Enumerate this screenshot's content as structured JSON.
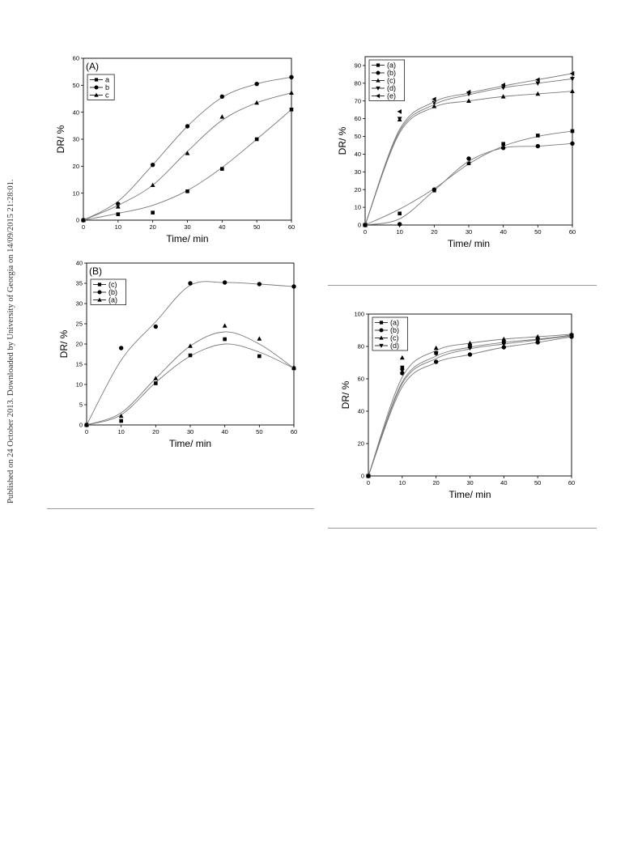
{
  "side_note": "Published on 24 October 2013. Downloaded by University of Georgia on 14/09/2015 21:28:01.",
  "chart_data": [
    {
      "id": "chart-a",
      "type": "scatter",
      "panel_label": "(A)",
      "xlabel": "Time/ min",
      "ylabel": "DR/ %",
      "xlim": [
        0,
        60
      ],
      "ylim": [
        0,
        60
      ],
      "xticks": [
        0,
        10,
        20,
        30,
        40,
        50,
        60
      ],
      "yticks": [
        0,
        10,
        20,
        30,
        40,
        50,
        60
      ],
      "legend_position": "top-left",
      "series": [
        {
          "name": "a",
          "marker": "square",
          "x": [
            0,
            10,
            20,
            30,
            40,
            50,
            60
          ],
          "y": [
            0,
            2.2,
            2.8,
            10.7,
            19,
            30,
            41
          ],
          "fit_x": [
            0,
            10,
            20,
            30,
            40,
            50,
            60
          ],
          "fit_y": [
            0,
            2.5,
            5.5,
            11,
            19.5,
            30,
            41
          ]
        },
        {
          "name": "b",
          "marker": "circle",
          "x": [
            0,
            10,
            20,
            30,
            40,
            50,
            60
          ],
          "y": [
            0,
            6,
            20.5,
            34.8,
            45.8,
            50.5,
            53
          ],
          "fit_x": [
            0,
            10,
            20,
            30,
            40,
            50,
            60
          ],
          "fit_y": [
            0,
            7,
            20.5,
            34.8,
            45.5,
            50.5,
            53
          ]
        },
        {
          "name": "c",
          "marker": "triangle-up",
          "x": [
            0,
            10,
            20,
            30,
            40,
            50,
            60
          ],
          "y": [
            0,
            5,
            13,
            24.8,
            38.3,
            43.5,
            47.2
          ],
          "fit_x": [
            0,
            10,
            20,
            30,
            40,
            50,
            60
          ],
          "fit_y": [
            0,
            5.5,
            13,
            25.5,
            37,
            43.5,
            47.2
          ]
        }
      ]
    },
    {
      "id": "chart-b",
      "type": "scatter",
      "panel_label": "(B)",
      "xlabel": "Time/ min",
      "ylabel": "DR/ %",
      "xlim": [
        0,
        60
      ],
      "ylim": [
        0,
        40
      ],
      "xticks": [
        0,
        10,
        20,
        30,
        40,
        50,
        60
      ],
      "yticks": [
        0,
        5,
        10,
        15,
        20,
        25,
        30,
        35,
        40
      ],
      "legend_position": "top-left",
      "series": [
        {
          "name": "(c)",
          "marker": "square",
          "x": [
            0,
            10,
            20,
            30,
            40,
            50,
            60
          ],
          "y": [
            0,
            1,
            10.3,
            17.2,
            21.2,
            17,
            14
          ],
          "fit_x": [
            0,
            10,
            20,
            30,
            40,
            50,
            60
          ],
          "fit_y": [
            0,
            2.5,
            10.5,
            17,
            20,
            18,
            14
          ]
        },
        {
          "name": "(b)",
          "marker": "circle",
          "x": [
            0,
            10,
            20,
            30,
            40,
            50,
            60
          ],
          "y": [
            0,
            19,
            24.3,
            35,
            35.2,
            34.8,
            34.2
          ],
          "fit_x": [
            0,
            10,
            20,
            30,
            40,
            50,
            60
          ],
          "fit_y": [
            0,
            16,
            25.5,
            34.5,
            35.2,
            34.8,
            34.2
          ]
        },
        {
          "name": "(a)",
          "marker": "triangle-up",
          "x": [
            0,
            10,
            20,
            30,
            40,
            50,
            60
          ],
          "y": [
            0,
            2.2,
            11.5,
            19.5,
            24.5,
            21.3,
            14.2
          ],
          "fit_x": [
            0,
            10,
            20,
            30,
            40,
            50,
            60
          ],
          "fit_y": [
            0,
            3,
            11.5,
            19.5,
            23,
            20,
            14
          ]
        }
      ]
    },
    {
      "id": "chart-c",
      "type": "scatter",
      "panel_label": "",
      "xlabel": "Time/ min",
      "ylabel": "DR/ %",
      "xlim": [
        0,
        60
      ],
      "ylim": [
        0,
        95
      ],
      "xticks": [
        0,
        10,
        20,
        30,
        40,
        50,
        60
      ],
      "yticks": [
        0,
        10,
        20,
        30,
        40,
        50,
        60,
        70,
        80,
        90
      ],
      "legend_position": "top-left",
      "series": [
        {
          "name": "(a)",
          "marker": "square",
          "x": [
            0,
            10,
            20,
            30,
            40,
            50,
            60
          ],
          "y": [
            0,
            6.5,
            19.5,
            34.8,
            45.8,
            50.5,
            53
          ],
          "fit_x": [
            0,
            10,
            20,
            30,
            40,
            50,
            60
          ],
          "fit_y": [
            0,
            9,
            20.5,
            34.5,
            44.5,
            50,
            53
          ]
        },
        {
          "name": "(b)",
          "marker": "circle",
          "x": [
            0,
            10,
            20,
            30,
            40,
            50,
            60
          ],
          "y": [
            0,
            0.5,
            20,
            37.5,
            43.5,
            44.5,
            46
          ],
          "fit_x": [
            0,
            10,
            20,
            30,
            40,
            50,
            60
          ],
          "fit_y": [
            0,
            3.5,
            19.5,
            36,
            43.5,
            44.5,
            46
          ]
        },
        {
          "name": "(c)",
          "marker": "triangle-up",
          "x": [
            0,
            10,
            20,
            30,
            40,
            50,
            60
          ],
          "y": [
            0,
            59.5,
            67,
            70,
            72.5,
            74,
            75.5
          ],
          "fit_x": [
            0,
            10,
            20,
            30,
            40,
            50,
            60
          ],
          "fit_y": [
            0,
            52,
            66.5,
            70,
            72.5,
            74,
            75.5
          ]
        },
        {
          "name": "(d)",
          "marker": "triangle-down",
          "x": [
            0,
            10,
            20,
            30,
            40,
            50,
            60
          ],
          "y": [
            0,
            60,
            69,
            74,
            77.5,
            80,
            82.5
          ],
          "fit_x": [
            0,
            10,
            20,
            30,
            40,
            50,
            60
          ],
          "fit_y": [
            0,
            53,
            68,
            73.5,
            77.5,
            80,
            82.5
          ]
        },
        {
          "name": "(e)",
          "marker": "triangle-left",
          "x": [
            0,
            10,
            20,
            30,
            40,
            50,
            60
          ],
          "y": [
            0,
            64,
            71,
            75,
            79,
            82,
            85.5
          ],
          "fit_x": [
            0,
            10,
            20,
            30,
            40,
            50,
            60
          ],
          "fit_y": [
            0,
            54,
            69.5,
            74.5,
            78.5,
            82,
            85.5
          ]
        }
      ]
    },
    {
      "id": "chart-d",
      "type": "scatter",
      "panel_label": "",
      "xlabel": "Time/ min",
      "ylabel": "DR/ %",
      "xlim": [
        0,
        60
      ],
      "ylim": [
        0,
        100
      ],
      "xticks": [
        0,
        10,
        20,
        30,
        40,
        50,
        60
      ],
      "yticks": [
        0,
        20,
        40,
        60,
        80,
        100
      ],
      "legend_position": "top-left",
      "series": [
        {
          "name": "(a)",
          "marker": "square",
          "x": [
            0,
            10,
            20,
            30,
            40,
            50,
            60
          ],
          "y": [
            0,
            67,
            76,
            80,
            82.5,
            84.5,
            87
          ],
          "fit_x": [
            0,
            10,
            20,
            30,
            40,
            50,
            60
          ],
          "fit_y": [
            0,
            58,
            74,
            79.5,
            82.5,
            84.5,
            87
          ]
        },
        {
          "name": "(b)",
          "marker": "circle",
          "x": [
            0,
            10,
            20,
            30,
            40,
            50,
            60
          ],
          "y": [
            0,
            63.5,
            70.5,
            75,
            79.5,
            82.5,
            86
          ],
          "fit_x": [
            0,
            10,
            20,
            30,
            40,
            50,
            60
          ],
          "fit_y": [
            0,
            55,
            70,
            75,
            79.5,
            82.5,
            86
          ]
        },
        {
          "name": "(c)",
          "marker": "triangle-up",
          "x": [
            0,
            10,
            20,
            30,
            40,
            50,
            60
          ],
          "y": [
            0,
            73,
            79,
            82,
            84.5,
            86,
            87.5
          ],
          "fit_x": [
            0,
            10,
            20,
            30,
            40,
            50,
            60
          ],
          "fit_y": [
            0,
            61,
            77.5,
            82,
            84.5,
            86,
            87.5
          ]
        },
        {
          "name": "(d)",
          "marker": "triangle-down",
          "x": [
            0,
            10,
            20,
            30,
            40,
            50,
            60
          ],
          "y": [
            0,
            65,
            75.5,
            79,
            81.5,
            84,
            86.5
          ],
          "fit_x": [
            0,
            10,
            20,
            30,
            40,
            50,
            60
          ],
          "fit_y": [
            0,
            57,
            72.5,
            78.5,
            81.5,
            84,
            86.5
          ]
        }
      ]
    }
  ]
}
